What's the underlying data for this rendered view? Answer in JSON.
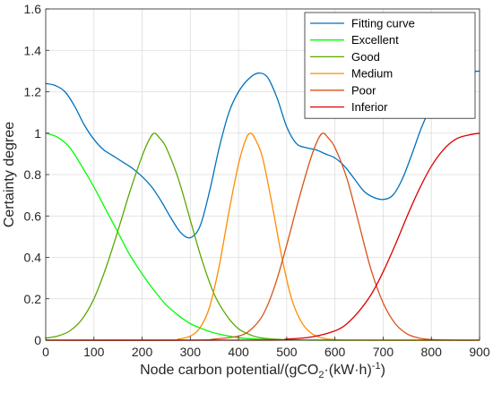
{
  "chart_data": {
    "type": "line",
    "xlabel": {
      "main": "Node carbon potential/(gCO",
      "sub1": "2",
      "mid": "·(kW·h)",
      "sup": "-1",
      "end": ")"
    },
    "ylabel": "Certainty degree",
    "xlim": [
      0,
      900
    ],
    "ylim": [
      0,
      1.6
    ],
    "x_ticks": [
      "0",
      "100",
      "200",
      "300",
      "400",
      "500",
      "600",
      "700",
      "800",
      "900"
    ],
    "y_ticks": [
      "0",
      "0.2",
      "0.4",
      "0.6",
      "0.8",
      "1",
      "1.2",
      "1.4",
      "1.6"
    ],
    "grid": true,
    "legend_position": "top-right",
    "series": [
      {
        "name": "Fitting curve",
        "color": "#0072BD",
        "points": [
          [
            0,
            1.24
          ],
          [
            20,
            1.23
          ],
          [
            40,
            1.2
          ],
          [
            60,
            1.13
          ],
          [
            80,
            1.04
          ],
          [
            100,
            0.97
          ],
          [
            120,
            0.92
          ],
          [
            140,
            0.89
          ],
          [
            160,
            0.86
          ],
          [
            180,
            0.83
          ],
          [
            200,
            0.79
          ],
          [
            220,
            0.74
          ],
          [
            240,
            0.67
          ],
          [
            260,
            0.59
          ],
          [
            280,
            0.52
          ],
          [
            300,
            0.495
          ],
          [
            320,
            0.55
          ],
          [
            340,
            0.72
          ],
          [
            360,
            0.93
          ],
          [
            380,
            1.1
          ],
          [
            400,
            1.2
          ],
          [
            420,
            1.26
          ],
          [
            440,
            1.29
          ],
          [
            460,
            1.27
          ],
          [
            480,
            1.17
          ],
          [
            500,
            1.03
          ],
          [
            520,
            0.95
          ],
          [
            540,
            0.93
          ],
          [
            560,
            0.92
          ],
          [
            580,
            0.9
          ],
          [
            600,
            0.88
          ],
          [
            620,
            0.84
          ],
          [
            640,
            0.78
          ],
          [
            660,
            0.72
          ],
          [
            680,
            0.69
          ],
          [
            700,
            0.68
          ],
          [
            720,
            0.7
          ],
          [
            740,
            0.78
          ],
          [
            760,
            0.9
          ],
          [
            780,
            1.03
          ],
          [
            800,
            1.13
          ],
          [
            820,
            1.21
          ],
          [
            840,
            1.26
          ],
          [
            860,
            1.28
          ],
          [
            880,
            1.295
          ],
          [
            900,
            1.3
          ]
        ]
      },
      {
        "name": "Excellent",
        "color": "#00FF00",
        "points": [
          [
            0,
            1.0
          ],
          [
            25,
            0.98
          ],
          [
            50,
            0.93
          ],
          [
            75,
            0.84
          ],
          [
            100,
            0.74
          ],
          [
            125,
            0.63
          ],
          [
            150,
            0.52
          ],
          [
            175,
            0.41
          ],
          [
            200,
            0.32
          ],
          [
            225,
            0.24
          ],
          [
            250,
            0.17
          ],
          [
            275,
            0.12
          ],
          [
            300,
            0.08
          ],
          [
            325,
            0.055
          ],
          [
            350,
            0.035
          ],
          [
            400,
            0.012
          ],
          [
            450,
            0.004
          ],
          [
            500,
            0.001
          ],
          [
            600,
            0.0
          ],
          [
            900,
            0.0
          ]
        ]
      },
      {
        "name": "Good",
        "color": "#5DA800",
        "points": [
          [
            0,
            0.01
          ],
          [
            25,
            0.02
          ],
          [
            50,
            0.045
          ],
          [
            75,
            0.1
          ],
          [
            100,
            0.2
          ],
          [
            125,
            0.35
          ],
          [
            150,
            0.53
          ],
          [
            175,
            0.72
          ],
          [
            200,
            0.89
          ],
          [
            215,
            0.97
          ],
          [
            225,
            1.0
          ],
          [
            235,
            0.98
          ],
          [
            250,
            0.93
          ],
          [
            275,
            0.78
          ],
          [
            300,
            0.58
          ],
          [
            325,
            0.38
          ],
          [
            350,
            0.22
          ],
          [
            375,
            0.12
          ],
          [
            400,
            0.055
          ],
          [
            425,
            0.025
          ],
          [
            450,
            0.01
          ],
          [
            500,
            0.002
          ],
          [
            600,
            0.0
          ],
          [
            900,
            0.0
          ]
        ]
      },
      {
        "name": "Medium",
        "color": "#FF8C00",
        "points": [
          [
            0,
            0.0
          ],
          [
            250,
            0.0
          ],
          [
            275,
            0.005
          ],
          [
            300,
            0.02
          ],
          [
            320,
            0.06
          ],
          [
            340,
            0.16
          ],
          [
            360,
            0.36
          ],
          [
            380,
            0.62
          ],
          [
            400,
            0.85
          ],
          [
            415,
            0.97
          ],
          [
            425,
            1.0
          ],
          [
            435,
            0.97
          ],
          [
            450,
            0.88
          ],
          [
            470,
            0.65
          ],
          [
            490,
            0.4
          ],
          [
            510,
            0.2
          ],
          [
            530,
            0.09
          ],
          [
            550,
            0.035
          ],
          [
            575,
            0.01
          ],
          [
            600,
            0.003
          ],
          [
            650,
            0.0
          ],
          [
            900,
            0.0
          ]
        ]
      },
      {
        "name": "Poor",
        "color": "#D95319",
        "points": [
          [
            0,
            0.0
          ],
          [
            300,
            0.0
          ],
          [
            350,
            0.005
          ],
          [
            400,
            0.02
          ],
          [
            425,
            0.05
          ],
          [
            450,
            0.12
          ],
          [
            475,
            0.26
          ],
          [
            500,
            0.46
          ],
          [
            525,
            0.68
          ],
          [
            550,
            0.88
          ],
          [
            565,
            0.97
          ],
          [
            575,
            1.0
          ],
          [
            585,
            0.98
          ],
          [
            600,
            0.93
          ],
          [
            625,
            0.78
          ],
          [
            650,
            0.56
          ],
          [
            675,
            0.34
          ],
          [
            700,
            0.18
          ],
          [
            725,
            0.08
          ],
          [
            750,
            0.03
          ],
          [
            775,
            0.01
          ],
          [
            800,
            0.003
          ],
          [
            850,
            0.0
          ],
          [
            900,
            0.0
          ]
        ]
      },
      {
        "name": "Inferior",
        "color": "#DD0000",
        "points": [
          [
            0,
            0.0
          ],
          [
            450,
            0.0
          ],
          [
            500,
            0.005
          ],
          [
            550,
            0.015
          ],
          [
            600,
            0.045
          ],
          [
            625,
            0.08
          ],
          [
            650,
            0.14
          ],
          [
            675,
            0.22
          ],
          [
            700,
            0.33
          ],
          [
            725,
            0.46
          ],
          [
            750,
            0.6
          ],
          [
            775,
            0.73
          ],
          [
            800,
            0.84
          ],
          [
            825,
            0.92
          ],
          [
            850,
            0.97
          ],
          [
            875,
            0.99
          ],
          [
            900,
            1.0
          ]
        ]
      }
    ]
  }
}
